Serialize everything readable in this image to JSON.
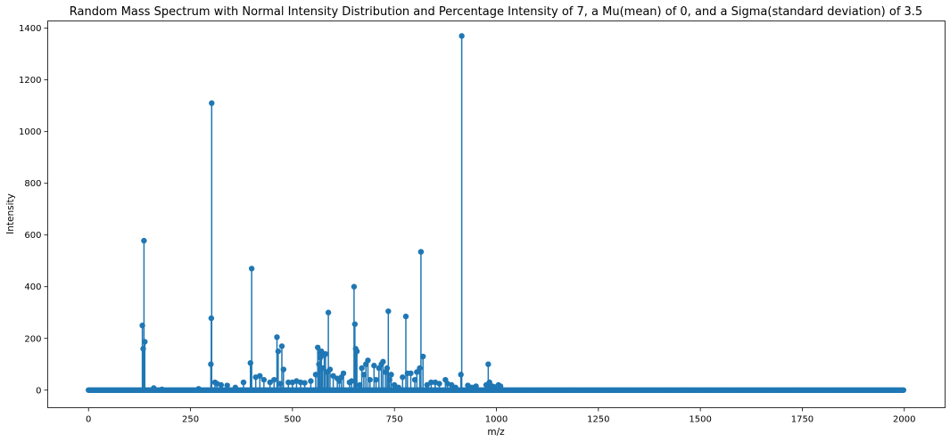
{
  "chart_data": {
    "type": "stem",
    "title": "Random Mass Spectrum with Normal Intensity Distribution and Percentage Intensity of 7, a Mu(mean) of 0, and a Sigma(standard deviation) of 3.5",
    "xlabel": "m/z",
    "ylabel": "Intensity",
    "xlim": [
      -100,
      2100
    ],
    "ylim": [
      -68,
      1428
    ],
    "xticks": [
      0,
      250,
      500,
      750,
      1000,
      1250,
      1500,
      1750,
      2000
    ],
    "yticks": [
      0,
      200,
      400,
      600,
      800,
      1000,
      1200,
      1400
    ],
    "grid": false,
    "colors": {
      "stem": "#1f77b4",
      "baseline": "#d62728"
    },
    "baseline": {
      "from": 0,
      "to": 2000
    },
    "series": [
      {
        "points": [
          [
            132,
            250
          ],
          [
            134,
            160
          ],
          [
            136,
            578
          ],
          [
            138,
            187
          ],
          [
            160,
            8
          ],
          [
            180,
            3
          ],
          [
            270,
            5
          ],
          [
            300,
            100
          ],
          [
            301,
            278
          ],
          [
            302,
            1110
          ],
          [
            310,
            30
          ],
          [
            315,
            25
          ],
          [
            325,
            20
          ],
          [
            340,
            18
          ],
          [
            360,
            10
          ],
          [
            380,
            30
          ],
          [
            397,
            105
          ],
          [
            400,
            470
          ],
          [
            410,
            50
          ],
          [
            420,
            55
          ],
          [
            430,
            40
          ],
          [
            445,
            30
          ],
          [
            455,
            40
          ],
          [
            462,
            205
          ],
          [
            465,
            150
          ],
          [
            470,
            25
          ],
          [
            474,
            170
          ],
          [
            478,
            80
          ],
          [
            490,
            30
          ],
          [
            500,
            30
          ],
          [
            510,
            35
          ],
          [
            520,
            30
          ],
          [
            530,
            28
          ],
          [
            545,
            35
          ],
          [
            557,
            60
          ],
          [
            562,
            165
          ],
          [
            565,
            100
          ],
          [
            567,
            145
          ],
          [
            568,
            125
          ],
          [
            571,
            150
          ],
          [
            574,
            85
          ],
          [
            578,
            135
          ],
          [
            581,
            140
          ],
          [
            585,
            70
          ],
          [
            588,
            300
          ],
          [
            592,
            80
          ],
          [
            600,
            55
          ],
          [
            610,
            45
          ],
          [
            615,
            35
          ],
          [
            620,
            50
          ],
          [
            625,
            65
          ],
          [
            640,
            30
          ],
          [
            645,
            35
          ],
          [
            651,
            400
          ],
          [
            653,
            255
          ],
          [
            655,
            160
          ],
          [
            658,
            150
          ],
          [
            665,
            20
          ],
          [
            670,
            85
          ],
          [
            675,
            60
          ],
          [
            680,
            100
          ],
          [
            685,
            115
          ],
          [
            690,
            40
          ],
          [
            700,
            95
          ],
          [
            705,
            40
          ],
          [
            712,
            85
          ],
          [
            718,
            100
          ],
          [
            722,
            110
          ],
          [
            728,
            70
          ],
          [
            732,
            85
          ],
          [
            735,
            305
          ],
          [
            738,
            40
          ],
          [
            742,
            60
          ],
          [
            750,
            20
          ],
          [
            760,
            10
          ],
          [
            770,
            50
          ],
          [
            778,
            285
          ],
          [
            782,
            65
          ],
          [
            790,
            65
          ],
          [
            800,
            40
          ],
          [
            805,
            70
          ],
          [
            812,
            85
          ],
          [
            815,
            535
          ],
          [
            820,
            130
          ],
          [
            830,
            20
          ],
          [
            840,
            30
          ],
          [
            850,
            30
          ],
          [
            860,
            25
          ],
          [
            875,
            40
          ],
          [
            880,
            25
          ],
          [
            890,
            20
          ],
          [
            900,
            10
          ],
          [
            913,
            60
          ],
          [
            915,
            1370
          ],
          [
            930,
            18
          ],
          [
            940,
            10
          ],
          [
            950,
            15
          ],
          [
            975,
            20
          ],
          [
            980,
            100
          ],
          [
            983,
            30
          ],
          [
            990,
            15
          ],
          [
            995,
            12
          ],
          [
            1005,
            20
          ],
          [
            1010,
            15
          ]
        ]
      }
    ]
  }
}
